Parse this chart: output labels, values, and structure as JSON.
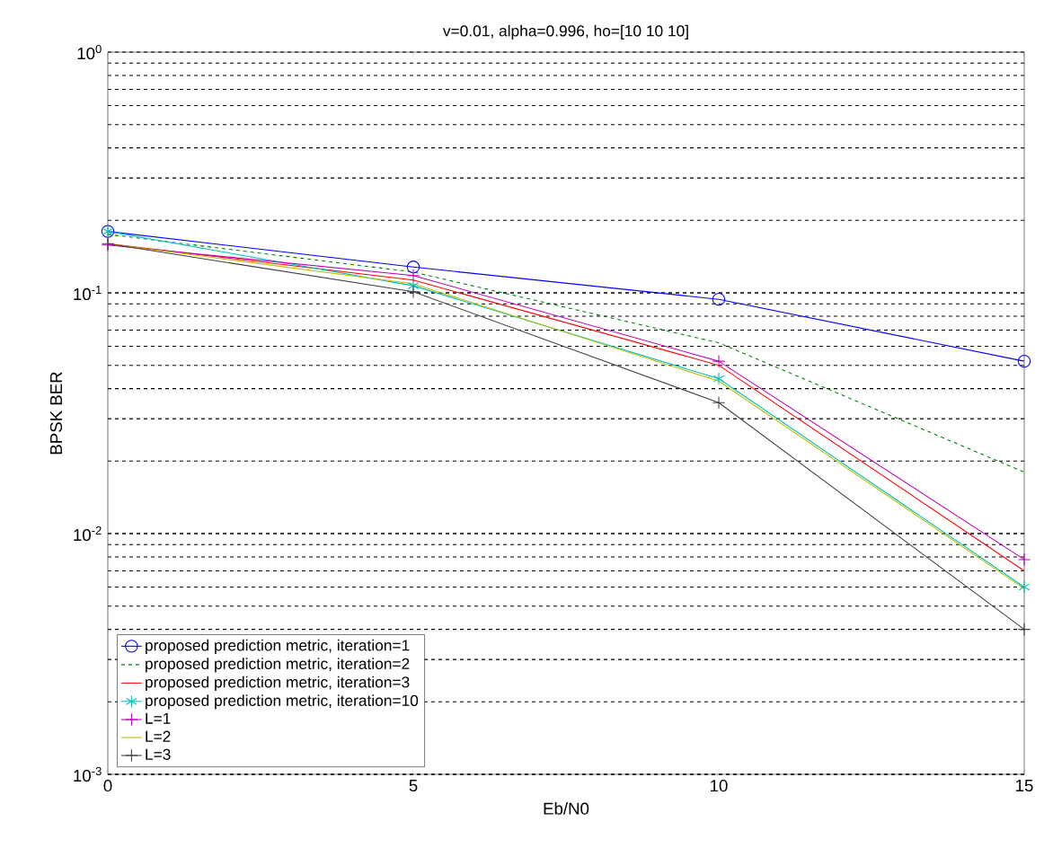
{
  "chart_data": {
    "type": "line",
    "title": "v=0.01, alpha=0.996, ho=[10 10 10]",
    "xlabel": "Eb/N0",
    "ylabel": "BPSK BER",
    "x": [
      0,
      5,
      10,
      15
    ],
    "series": [
      {
        "name": "proposed prediction metric, iteration=1",
        "color": "#0000ff",
        "marker": "circle",
        "line_style": "solid",
        "values": [
          0.18,
          0.128,
          0.094,
          0.052
        ]
      },
      {
        "name": "proposed prediction metric, iteration=2",
        "color": "#007f00",
        "marker": "none",
        "line_style": "dashed",
        "values": [
          0.175,
          0.122,
          0.062,
          0.018
        ]
      },
      {
        "name": "proposed prediction metric, iteration=3",
        "color": "#ff0000",
        "marker": "none",
        "line_style": "solid",
        "values": [
          0.16,
          0.113,
          0.05,
          0.007
        ]
      },
      {
        "name": "proposed prediction metric, iteration=10",
        "color": "#00bfbf",
        "marker": "cross",
        "line_style": "solid",
        "values": [
          0.18,
          0.107,
          0.044,
          0.006
        ]
      },
      {
        "name": "L=1",
        "color": "#bf00bf",
        "marker": "cross",
        "line_style": "solid",
        "values": [
          0.158,
          0.118,
          0.052,
          0.0078
        ]
      },
      {
        "name": "L=2",
        "color": "#bfbf00",
        "marker": "none",
        "line_style": "solid",
        "values": [
          0.16,
          0.109,
          0.043,
          0.0059
        ]
      },
      {
        "name": "L=3",
        "color": "#404040",
        "marker": "cross",
        "line_style": "solid",
        "values": [
          0.16,
          0.101,
          0.035,
          0.004
        ]
      }
    ],
    "log": "y",
    "xlim": [
      0,
      15
    ],
    "ylim": [
      0.001,
      1
    ],
    "xticks": [
      0,
      5,
      10,
      15
    ],
    "yticks": [
      {
        "value": 0.001,
        "label": "10$^{-3}$"
      },
      {
        "value": 0.01,
        "label": "10$^{-2}$"
      },
      {
        "value": 0.1,
        "label": "10$^{-1}$"
      },
      {
        "value": 1,
        "label": "10$^{0}$"
      }
    ],
    "grid": "y",
    "legend": "bottom left"
  }
}
